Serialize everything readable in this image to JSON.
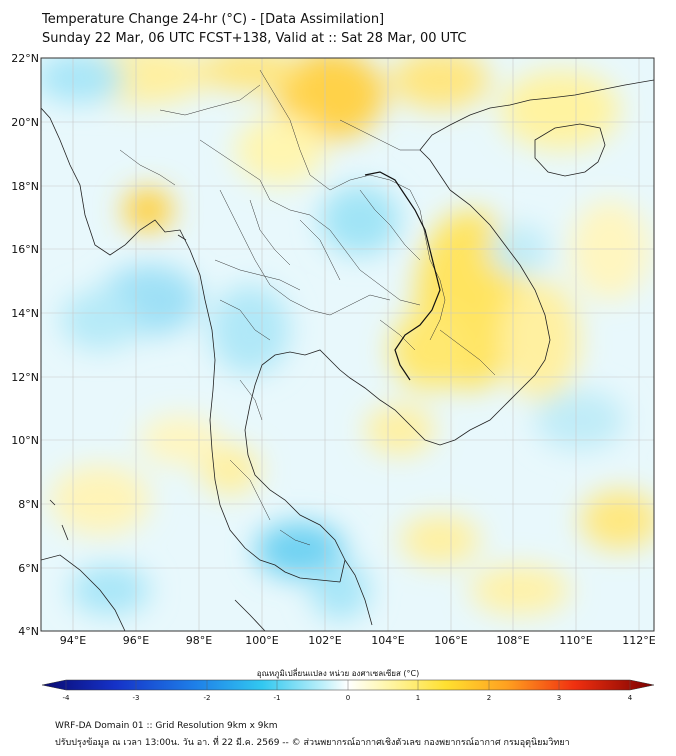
{
  "title": {
    "line1": "Temperature Change 24-hr (°C) - [Data Assimilation]",
    "line2": "Sunday 22 Mar, 06 UTC FCST+138, Valid at :: Sat 28 Mar, 00 UTC"
  },
  "map": {
    "lat_labels": [
      "22°N",
      "20°N",
      "18°N",
      "16°N",
      "14°N",
      "12°N",
      "10°N",
      "8°N",
      "6°N",
      "4°N"
    ],
    "lon_labels": [
      "94°E",
      "96°E",
      "98°E",
      "100°E",
      "102°E",
      "104°E",
      "106°E",
      "108°E",
      "110°E",
      "112°E"
    ]
  },
  "colorbar": {
    "label": "อุณหภูมิเปลี่ยนแปลง หน่วย องศาเซลเซียส (°C)",
    "ticks": [
      "-4",
      "-3",
      "-2",
      "-1",
      "0",
      "1",
      "2",
      "3",
      "4"
    ]
  },
  "footer": {
    "line1": "WRF-DA Domain 01 :: Grid Resolution 9km x 9km",
    "line2": "ปรับปรุงข้อมูล ณ เวลา 13:00น. วัน อา. ที่ 22 มี.ค. 2569 -- © ส่วนพยากรณ์อากาศเชิงตัวเลข กองพยากรณ์อากาศ กรมอุตุนิยมวิทยา"
  }
}
